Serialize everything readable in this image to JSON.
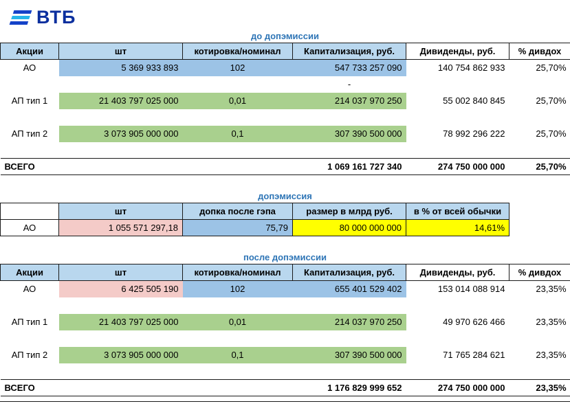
{
  "brand": {
    "name": "ВТБ"
  },
  "colors": {
    "brand_text": "#0b2f9e",
    "flag_dark": "#1442c8",
    "flag_light": "#27b5ea",
    "title_text": "#2e75b6",
    "header_fill": "#b9d7ee",
    "blue_fill": "#9cc3e6",
    "green_fill": "#a9d08e",
    "pink_fill": "#f4cbc8",
    "yellow_fill": "#ffff00",
    "border": "#1a1a1a"
  },
  "sections": [
    {
      "title": "до допэмиссии",
      "rows": [
        {
          "name": "header-row",
          "type": "header",
          "cells": [
            {
              "text": "Акции",
              "bg": "header",
              "align": "c"
            },
            {
              "text": "шт",
              "bg": "header",
              "align": "c"
            },
            {
              "text": "котировка/номинал",
              "bg": "header",
              "align": "c"
            },
            {
              "text": "Капитализация, руб.",
              "bg": "header",
              "align": "c"
            },
            {
              "text": "Дивиденды, руб.",
              "align": "c"
            },
            {
              "text": "% дивдох",
              "align": "c"
            }
          ]
        },
        {
          "name": "row-ao",
          "cells": [
            {
              "text": "АО",
              "align": "c"
            },
            {
              "text": "5 369 933 893",
              "bg": "blue",
              "align": "r"
            },
            {
              "text": "102",
              "bg": "blue",
              "align": "c"
            },
            {
              "text": "547 733 257 090",
              "bg": "blue",
              "align": "r"
            },
            {
              "text": "140 754 862 933",
              "align": "r"
            },
            {
              "text": "25,70%",
              "align": "r"
            }
          ]
        },
        {
          "name": "dash-row",
          "cells": [
            {
              "text": ""
            },
            {
              "text": ""
            },
            {
              "text": ""
            },
            {
              "text": "-",
              "align": "c"
            },
            {
              "text": ""
            },
            {
              "text": ""
            }
          ]
        },
        {
          "name": "row-ap-type1",
          "cells": [
            {
              "text": "АП тип 1",
              "align": "c"
            },
            {
              "text": "21 403 797 025 000",
              "bg": "green",
              "align": "r"
            },
            {
              "text": "0,01",
              "bg": "green",
              "align": "c"
            },
            {
              "text": "214 037 970 250",
              "bg": "green",
              "align": "r"
            },
            {
              "text": "55 002 840 845",
              "align": "r"
            },
            {
              "text": "25,70%",
              "align": "r"
            }
          ]
        },
        {
          "name": "spacer-row",
          "cells": [
            {
              "text": ""
            },
            {
              "text": ""
            },
            {
              "text": ""
            },
            {
              "text": ""
            },
            {
              "text": ""
            },
            {
              "text": ""
            }
          ]
        },
        {
          "name": "row-ap-type2",
          "cells": [
            {
              "text": "АП тип 2",
              "align": "c"
            },
            {
              "text": "3 073 905 000 000",
              "bg": "green",
              "align": "r"
            },
            {
              "text": "0,1",
              "bg": "green",
              "align": "c"
            },
            {
              "text": "307 390 500 000",
              "bg": "green",
              "align": "r"
            },
            {
              "text": "78 992 296 222",
              "align": "r"
            },
            {
              "text": "25,70%",
              "align": "r"
            }
          ]
        },
        {
          "name": "spacer-row",
          "cells": [
            {
              "text": ""
            },
            {
              "text": ""
            },
            {
              "text": ""
            },
            {
              "text": ""
            },
            {
              "text": ""
            },
            {
              "text": ""
            }
          ]
        },
        {
          "name": "total-row",
          "total": true,
          "cells": [
            {
              "text": "ВСЕГО",
              "align": "l"
            },
            {
              "text": ""
            },
            {
              "text": ""
            },
            {
              "text": "1 069 161 727 340",
              "align": "r"
            },
            {
              "text": "274 750 000 000",
              "align": "r"
            },
            {
              "text": "25,70%",
              "align": "r"
            }
          ]
        }
      ]
    },
    {
      "title": "допэмиссия",
      "rows": [
        {
          "name": "header-row",
          "type": "header",
          "cells": [
            {
              "text": ""
            },
            {
              "text": "шт",
              "bg": "header",
              "align": "c"
            },
            {
              "text": "допка после гэпа",
              "bg": "header",
              "align": "c"
            },
            {
              "text": "размер в млрд руб.",
              "bg": "header",
              "align": "c"
            },
            {
              "text": "в % от всей обычки",
              "bg": "header",
              "align": "c"
            }
          ]
        },
        {
          "name": "row-ao",
          "cells": [
            {
              "text": "АО",
              "align": "c"
            },
            {
              "text": "1 055 571 297,18",
              "bg": "pink",
              "align": "r"
            },
            {
              "text": "75,79",
              "bg": "blue",
              "align": "r"
            },
            {
              "text": "80 000 000 000",
              "bg": "yellow",
              "align": "r"
            },
            {
              "text": "14,61%",
              "bg": "yellow",
              "align": "r"
            }
          ]
        }
      ]
    },
    {
      "title": "после допэмиссии",
      "rows": [
        {
          "name": "header-row",
          "type": "header",
          "cells": [
            {
              "text": "Акции",
              "bg": "header",
              "align": "c"
            },
            {
              "text": "шт",
              "bg": "header",
              "align": "c"
            },
            {
              "text": "котировка/номинал",
              "bg": "header",
              "align": "c"
            },
            {
              "text": "Капитализация, руб.",
              "bg": "header",
              "align": "c"
            },
            {
              "text": "Дивиденды, руб.",
              "align": "c"
            },
            {
              "text": "% дивдох",
              "align": "c"
            }
          ]
        },
        {
          "name": "row-ao",
          "cells": [
            {
              "text": "АО",
              "align": "c"
            },
            {
              "text": "6 425 505 190",
              "bg": "pink",
              "align": "r"
            },
            {
              "text": "102",
              "bg": "blue",
              "align": "c"
            },
            {
              "text": "655 401 529 402",
              "bg": "blue",
              "align": "r"
            },
            {
              "text": "153 014 088 914",
              "align": "r"
            },
            {
              "text": "23,35%",
              "align": "r"
            }
          ]
        },
        {
          "name": "spacer-row",
          "cells": [
            {
              "text": ""
            },
            {
              "text": ""
            },
            {
              "text": ""
            },
            {
              "text": ""
            },
            {
              "text": ""
            },
            {
              "text": ""
            }
          ]
        },
        {
          "name": "row-ap-type1",
          "cells": [
            {
              "text": "АП тип 1",
              "align": "c"
            },
            {
              "text": "21 403 797 025 000",
              "bg": "green",
              "align": "r"
            },
            {
              "text": "0,01",
              "bg": "green",
              "align": "c"
            },
            {
              "text": "214 037 970 250",
              "bg": "green",
              "align": "r"
            },
            {
              "text": "49 970 626 466",
              "align": "r"
            },
            {
              "text": "23,35%",
              "align": "r"
            }
          ]
        },
        {
          "name": "spacer-row",
          "cells": [
            {
              "text": ""
            },
            {
              "text": ""
            },
            {
              "text": ""
            },
            {
              "text": ""
            },
            {
              "text": ""
            },
            {
              "text": ""
            }
          ]
        },
        {
          "name": "row-ap-type2",
          "cells": [
            {
              "text": "АП тип 2",
              "align": "c"
            },
            {
              "text": "3 073 905 000 000",
              "bg": "green",
              "align": "r"
            },
            {
              "text": "0,1",
              "bg": "green",
              "align": "c"
            },
            {
              "text": "307 390 500 000",
              "bg": "green",
              "align": "r"
            },
            {
              "text": "71 765 284 621",
              "align": "r"
            },
            {
              "text": "23,35%",
              "align": "r"
            }
          ]
        },
        {
          "name": "spacer-row",
          "cells": [
            {
              "text": ""
            },
            {
              "text": ""
            },
            {
              "text": ""
            },
            {
              "text": ""
            },
            {
              "text": ""
            },
            {
              "text": ""
            }
          ]
        },
        {
          "name": "total-row",
          "total": true,
          "cells": [
            {
              "text": "ВСЕГО",
              "align": "l"
            },
            {
              "text": ""
            },
            {
              "text": ""
            },
            {
              "text": "1 176 829 999 652",
              "align": "r"
            },
            {
              "text": "274 750 000 000",
              "align": "r"
            },
            {
              "text": "23,35%",
              "align": "r"
            }
          ]
        }
      ]
    }
  ]
}
